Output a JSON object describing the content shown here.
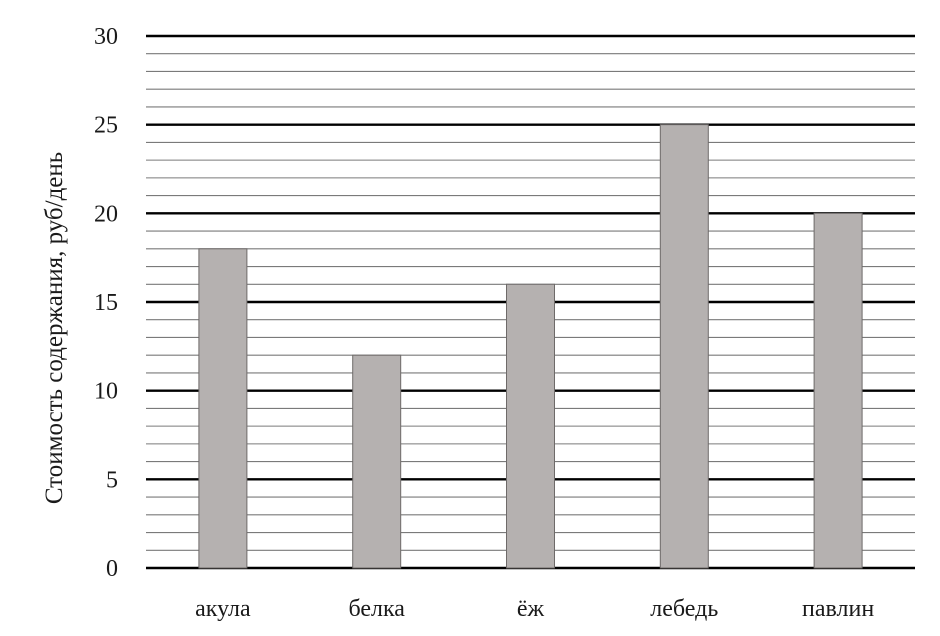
{
  "chart_data": {
    "type": "bar",
    "title": "",
    "xlabel": "",
    "ylabel": "Стоимость содержания, руб/день",
    "categories": [
      "акула",
      "белка",
      "ёж",
      "лебедь",
      "павлин"
    ],
    "values": [
      18,
      12,
      16,
      25,
      20
    ],
    "ylim": [
      0,
      30
    ],
    "y_ticks": [
      0,
      5,
      10,
      15,
      20,
      25,
      30
    ],
    "y_tick_labels": [
      "0",
      "5",
      "10",
      "15",
      "20",
      "25",
      "30"
    ],
    "minor_gridline_step": 1,
    "major_gridline_step": 5,
    "grid": true,
    "legend": "none",
    "colors": {
      "bar_fill": "#b5b1b0",
      "bar_stroke": "#6e6a69",
      "major_grid": "#000000",
      "minor_grid": "#7a7a7a",
      "text": "#1a1a1a"
    }
  }
}
